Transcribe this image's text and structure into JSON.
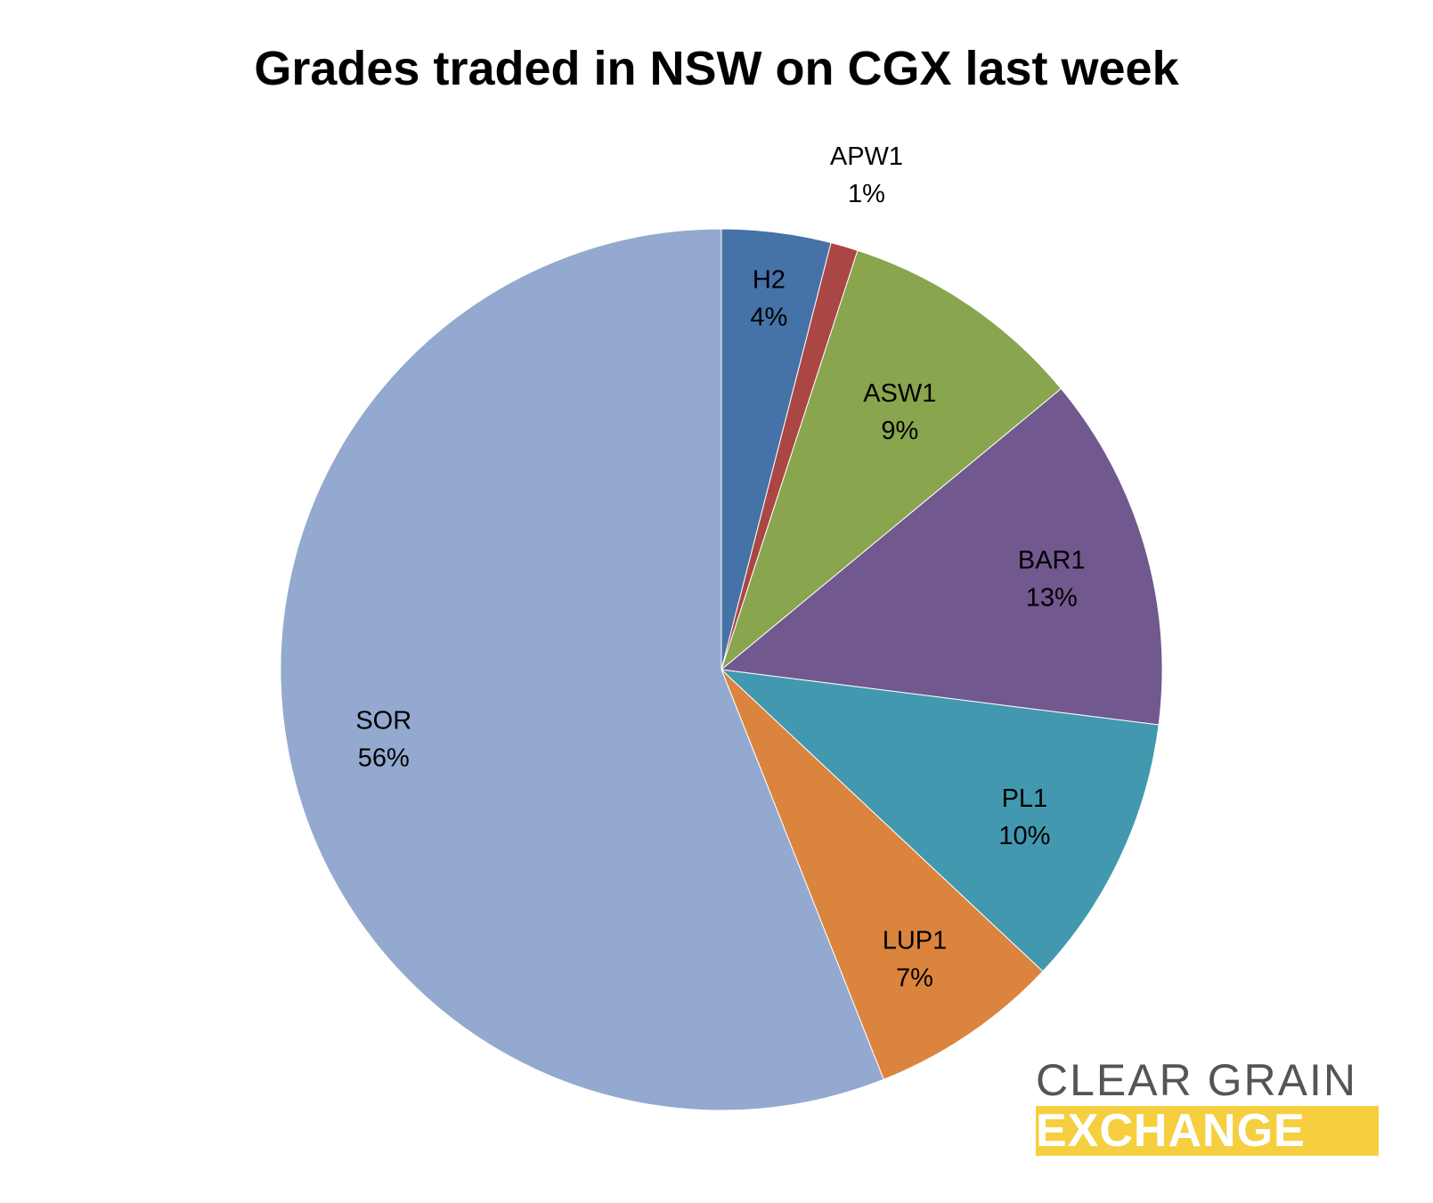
{
  "chart_data": {
    "type": "pie",
    "title": "Grades traded in NSW on CGX last week",
    "slices": [
      {
        "name": "H2",
        "value": 4,
        "label": "4%",
        "color": "#4572a7"
      },
      {
        "name": "APW1",
        "value": 1,
        "label": "1%",
        "color": "#aa4643"
      },
      {
        "name": "ASW1",
        "value": 9,
        "label": "9%",
        "color": "#89a54e"
      },
      {
        "name": "BAR1",
        "value": 13,
        "label": "13%",
        "color": "#71588f"
      },
      {
        "name": "PL1",
        "value": 10,
        "label": "10%",
        "color": "#4198af"
      },
      {
        "name": "LUP1",
        "value": 7,
        "label": "7%",
        "color": "#db843d"
      },
      {
        "name": "SOR",
        "value": 56,
        "label": "56%",
        "color": "#93a9cf"
      }
    ],
    "legend": "none"
  },
  "logo": {
    "line1": "CLEAR GRAIN",
    "line2": "EXCHANGE"
  }
}
